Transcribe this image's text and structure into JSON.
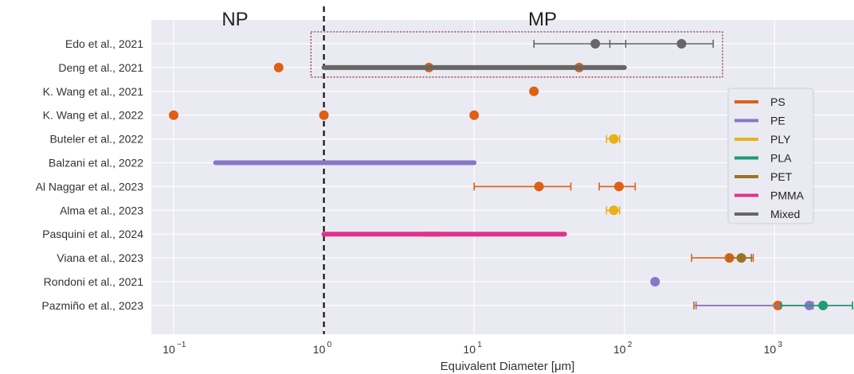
{
  "chart_data": {
    "type": "scatter",
    "x_scale": "log",
    "xlim": [
      0.07,
      3500
    ],
    "xlabel": "Equivalent Diameter [μm]",
    "x_ticks": [
      {
        "value": 0.1,
        "base": "10",
        "exp": "−1"
      },
      {
        "value": 1,
        "base": "10",
        "exp": "0"
      },
      {
        "value": 10,
        "base": "10",
        "exp": "1"
      },
      {
        "value": 100,
        "base": "10",
        "exp": "2"
      },
      {
        "value": 1000,
        "base": "10",
        "exp": "3"
      }
    ],
    "studies": [
      "Edo et al., 2021",
      "Deng et al., 2021",
      "K. Wang et al., 2021",
      "K. Wang et al., 2022",
      "Buteler et al., 2022",
      "Balzani et al., 2022",
      "Al Naggar et al., 2023",
      "Alma et al., 2023",
      "Pasquini et al., 2024",
      "Viana et al., 2023",
      "Rondoni et al., 2021",
      "Pazmiño et al., 2023"
    ],
    "annotations": {
      "threshold_x": 1,
      "left_region": "NP",
      "right_region": "MP",
      "highlight_box": {
        "x_range": [
          0.82,
          450
        ],
        "rows": [
          "Edo et al., 2021",
          "Deng et al., 2021"
        ]
      }
    },
    "grid": true,
    "legend_position": "right",
    "legend": [
      {
        "name": "PS",
        "color": "#dd6013"
      },
      {
        "name": "PE",
        "color": "#8877c6"
      },
      {
        "name": "PLY",
        "color": "#e8b117"
      },
      {
        "name": "PLA",
        "color": "#1f9b75"
      },
      {
        "name": "PET",
        "color": "#9a7324"
      },
      {
        "name": "PMMA",
        "color": "#e0338c"
      },
      {
        "name": "Mixed",
        "color": "#666666"
      }
    ],
    "series": [
      {
        "name": "PS",
        "color": "#dd6013",
        "points": [
          {
            "study": 2,
            "x": 0.5
          },
          {
            "study": 2,
            "x": 5
          },
          {
            "study": 2,
            "x": 50
          },
          {
            "study": 3,
            "x": 25
          },
          {
            "study": 4,
            "x": 0.1
          },
          {
            "study": 4,
            "x": 1
          },
          {
            "study": 4,
            "x": 10
          },
          {
            "study": 7,
            "x": 27,
            "xerr": [
              10,
              44
            ]
          },
          {
            "study": 7,
            "x": 92,
            "xerr": [
              68,
              118
            ]
          },
          {
            "study": 10,
            "x": 500,
            "xerr": [
              280,
              720
            ]
          },
          {
            "study": 12,
            "x": 1050,
            "xerr": [
              290,
              1800
            ]
          }
        ],
        "ranges": [
          {
            "study": 9,
            "x": [
              4.6,
              6
            ]
          }
        ]
      },
      {
        "name": "PE",
        "color": "#8877c6",
        "points": [
          {
            "study": 11,
            "x": 160
          },
          {
            "study": 12,
            "x": 1700,
            "xerr": [
              300,
              3300
            ]
          }
        ],
        "ranges": [
          {
            "study": 6,
            "x": [
              0.19,
              10
            ]
          }
        ]
      },
      {
        "name": "PLY",
        "color": "#e8b117",
        "points": [
          {
            "study": 5,
            "x": 85,
            "xerr": [
              76,
              93
            ]
          },
          {
            "study": 8,
            "x": 85,
            "xerr": [
              76,
              93
            ]
          }
        ]
      },
      {
        "name": "PLA",
        "color": "#1f9b75",
        "points": [
          {
            "study": 12,
            "x": 2100,
            "xerr": [
              1100,
              3300
            ]
          }
        ]
      },
      {
        "name": "PET",
        "color": "#9a7324",
        "points": [
          {
            "study": 10,
            "x": 600,
            "xerr": [
              490,
              700
            ]
          }
        ]
      },
      {
        "name": "PMMA",
        "color": "#e0338c",
        "ranges": [
          {
            "study": 9,
            "x": [
              1,
              40
            ]
          }
        ]
      },
      {
        "name": "Mixed",
        "color": "#666666",
        "points": [
          {
            "study": 1,
            "x": 64,
            "xerr": [
              25,
              102
            ]
          },
          {
            "study": 1,
            "x": 240,
            "xerr": [
              80,
              390
            ]
          }
        ],
        "ranges": [
          {
            "study": 2,
            "x": [
              1,
              100
            ]
          }
        ]
      }
    ]
  }
}
